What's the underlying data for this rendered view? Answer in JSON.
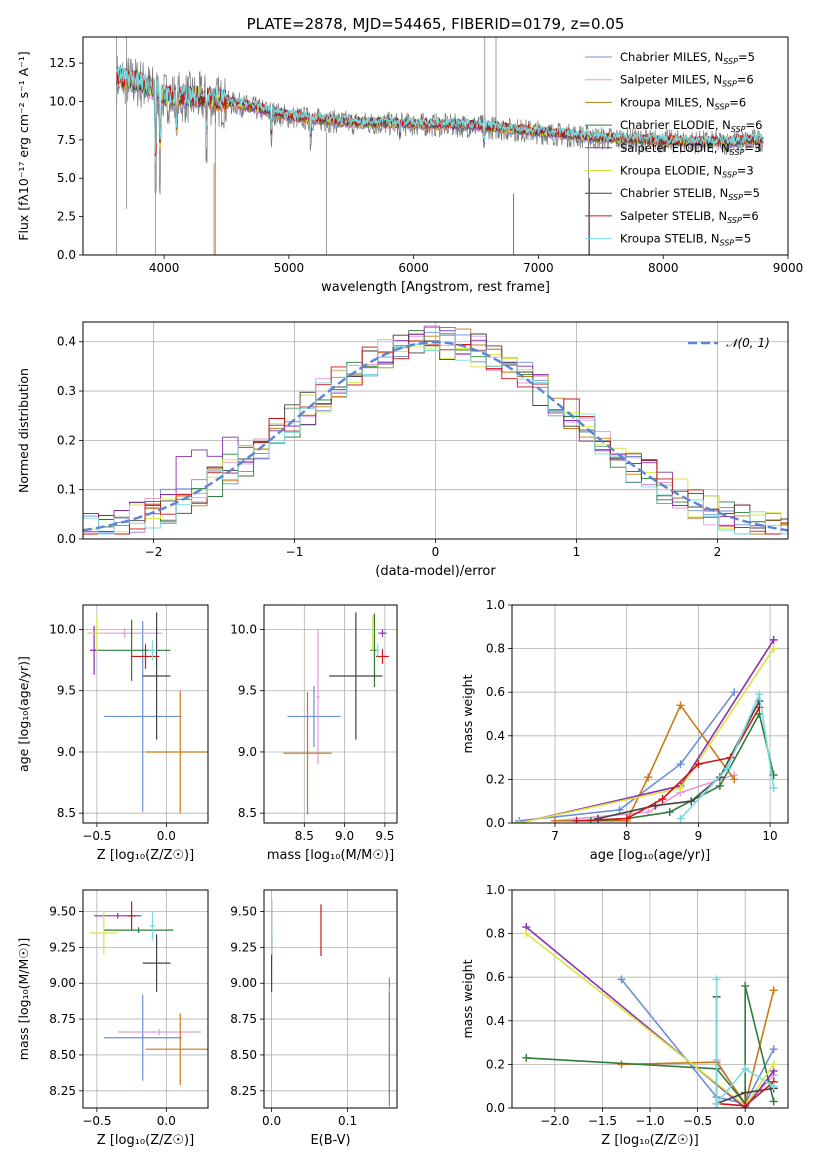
{
  "colors": {
    "chabrier_miles": "#6b8fd6",
    "salpeter_miles": "#e79ad8",
    "kroupa_miles": "#c77a16",
    "chabrier_elodie": "#2e7d3a",
    "salpeter_elodie": "#8e2fb0",
    "kroupa_elodie": "#d7e640",
    "chabrier_stelib": "#444444",
    "salpeter_stelib": "#c8161b",
    "kroupa_stelib": "#79dbe0",
    "spectrum": "#777777",
    "normal": "#5b85d8"
  },
  "chart_data": [
    {
      "id": "spectrum",
      "type": "line",
      "title": "PLATE=2878, MJD=54465, FIBERID=0179, z=0.05",
      "xlabel": "wavelength [Angstrom, rest frame]",
      "ylabel": "Flux [fλ10⁻¹⁷ erg cm⁻² s⁻¹ A⁻¹]",
      "xlim": [
        3350,
        9000
      ],
      "ylim": [
        0,
        14.2
      ],
      "xticks": [
        "4000",
        "5000",
        "6000",
        "7000",
        "8000",
        "9000"
      ],
      "yticks": [
        "0.0",
        "2.5",
        "5.0",
        "7.5",
        "10.0",
        "12.5"
      ],
      "legend": [
        "Chabrier MILES, NSSP=5",
        "Salpeter MILES, NSSP=6",
        "Kroupa MILES, NSSP=6",
        "Chabrier ELODIE, NSSP=6",
        "Salpeter ELODIE, NSSP=3",
        "Kroupa ELODIE, NSSP=3",
        "Chabrier STELIB, NSSP=5",
        "Salpeter STELIB, NSSP=6",
        "Kroupa STELIB, NSSP=5"
      ],
      "legend_position": "upper right",
      "continuum": [
        [
          3620,
          11.5
        ],
        [
          3800,
          11.2
        ],
        [
          4000,
          10.3
        ],
        [
          4300,
          10.2
        ],
        [
          4600,
          9.8
        ],
        [
          5000,
          9.0
        ],
        [
          5500,
          8.6
        ],
        [
          6000,
          8.5
        ],
        [
          6500,
          8.4
        ],
        [
          7000,
          8.0
        ],
        [
          7500,
          7.6
        ],
        [
          8000,
          7.4
        ],
        [
          8500,
          7.3
        ],
        [
          8800,
          7.5
        ]
      ]
    },
    {
      "id": "residuals",
      "type": "histogram",
      "xlabel": "(data-model)/error",
      "ylabel": "Normed distribution",
      "xlim": [
        -2.5,
        2.5
      ],
      "ylim": [
        0,
        0.44
      ],
      "xticks": [
        "−2",
        "−1",
        "0",
        "1",
        "2"
      ],
      "yticks": [
        "0.0",
        "0.1",
        "0.2",
        "0.3",
        "0.4"
      ],
      "legend": [
        "𝒩(0, 1)"
      ],
      "legend_position": "upper right",
      "grid": true
    },
    {
      "id": "age_vs_Z",
      "type": "errorbar",
      "xlabel": "Z [log₁₀(Z/Z☉)]",
      "ylabel": "age  [log₁₀(age/yr)]",
      "xlim": [
        -0.6,
        0.3
      ],
      "ylim": [
        8.42,
        10.2
      ],
      "xticks": [
        "−0.5",
        "0.0"
      ],
      "yticks": [
        "8.5",
        "9.0",
        "9.5",
        "10.0"
      ],
      "grid": true,
      "points": [
        {
          "s": "chabrier_miles",
          "x": -0.17,
          "xerr": 0.28,
          "y": 9.29,
          "yerr": 0.78
        },
        {
          "s": "salpeter_miles",
          "x": -0.3,
          "xerr": 0.27,
          "y": 9.97,
          "yerr": 0.04
        },
        {
          "s": "kroupa_miles",
          "x": 0.1,
          "xerr": 0.25,
          "y": 9.0,
          "yerr": 0.5
        },
        {
          "s": "chabrier_elodie",
          "x": -0.25,
          "xerr": 0.28,
          "y": 9.83,
          "yerr": 0.25
        },
        {
          "s": "salpeter_elodie",
          "x": -0.52,
          "xerr": 0.03,
          "y": 9.83,
          "yerr": 0.2
        },
        {
          "s": "kroupa_elodie",
          "x": -0.5,
          "xerr": 0.05,
          "y": 9.97,
          "yerr": 0.15
        },
        {
          "s": "chabrier_stelib",
          "x": -0.07,
          "xerr": 0.1,
          "y": 9.62,
          "yerr": 0.52
        },
        {
          "s": "salpeter_stelib",
          "x": -0.15,
          "xerr": 0.1,
          "y": 9.78,
          "yerr": 0.1
        },
        {
          "s": "kroupa_stelib",
          "x": -0.1,
          "xerr": 0.03,
          "y": 9.83,
          "yerr": 0.08
        }
      ]
    },
    {
      "id": "age_vs_mass",
      "type": "errorbar",
      "xlabel": "mass [log₁₀(M/M☉)]",
      "ylabel": "",
      "xlim": [
        8.0,
        9.65
      ],
      "ylim": [
        8.42,
        10.2
      ],
      "xticks": [
        "8.5",
        "9.0",
        "9.5"
      ],
      "yticks": [
        "8.5",
        "9.0",
        "9.5",
        "10.0"
      ],
      "grid": true,
      "points": [
        {
          "s": "chabrier_miles",
          "x": 8.62,
          "xerr": 0.33,
          "y": 9.29,
          "yerr": 0.25
        },
        {
          "s": "salpeter_miles",
          "x": 8.67,
          "xerr": 0.02,
          "y": 9.45,
          "yerr": 0.55
        },
        {
          "s": "kroupa_miles",
          "x": 8.54,
          "xerr": 0.3,
          "y": 8.99,
          "yerr": 0.5
        },
        {
          "s": "chabrier_elodie",
          "x": 9.37,
          "xerr": 0.05,
          "y": 9.83,
          "yerr": 0.3
        },
        {
          "s": "salpeter_elodie",
          "x": 9.47,
          "xerr": 0.05,
          "y": 9.97,
          "yerr": 0.03
        },
        {
          "s": "kroupa_elodie",
          "x": 9.35,
          "xerr": 0.02,
          "y": 9.97,
          "yerr": 0.15
        },
        {
          "s": "chabrier_stelib",
          "x": 9.14,
          "xerr": 0.33,
          "y": 9.62,
          "yerr": 0.52
        },
        {
          "s": "salpeter_stelib",
          "x": 9.47,
          "xerr": 0.08,
          "y": 9.78,
          "yerr": 0.06
        },
        {
          "s": "kroupa_stelib",
          "x": 9.41,
          "xerr": 0.02,
          "y": 9.83,
          "yerr": 0.05
        }
      ]
    },
    {
      "id": "mass_weight_vs_age",
      "type": "line",
      "xlabel": "age  [log₁₀(age/yr)]",
      "ylabel": "mass weight",
      "xlim": [
        6.4,
        10.25
      ],
      "ylim": [
        0,
        1.0
      ],
      "xticks": [
        "7",
        "8",
        "9",
        "10"
      ],
      "yticks": [
        "0.0",
        "0.2",
        "0.4",
        "0.6",
        "0.8",
        "1.0"
      ],
      "grid": true,
      "series": [
        {
          "s": "chabrier_miles",
          "x": [
            6.5,
            7.9,
            8.75,
            9.5
          ],
          "y": [
            0.01,
            0.06,
            0.27,
            0.6
          ]
        },
        {
          "s": "salpeter_miles",
          "x": [
            7.0,
            8.3,
            8.75,
            9.5
          ],
          "y": [
            0.01,
            0.05,
            0.14,
            0.22
          ]
        },
        {
          "s": "kroupa_miles",
          "x": [
            7.0,
            8.0,
            8.3,
            8.75,
            9.5
          ],
          "y": [
            0.01,
            0.01,
            0.21,
            0.54,
            0.2
          ]
        },
        {
          "s": "chabrier_elodie",
          "x": [
            7.5,
            8.0,
            8.6,
            9.3,
            9.85,
            10.05
          ],
          "y": [
            0.01,
            0.02,
            0.05,
            0.17,
            0.5,
            0.22
          ]
        },
        {
          "s": "salpeter_elodie",
          "x": [
            6.5,
            8.75,
            10.05
          ],
          "y": [
            0.0,
            0.17,
            0.84
          ]
        },
        {
          "s": "kroupa_elodie",
          "x": [
            6.5,
            8.75,
            10.05
          ],
          "y": [
            0.0,
            0.16,
            0.8
          ]
        },
        {
          "s": "chabrier_stelib",
          "x": [
            7.6,
            8.4,
            8.9,
            9.3,
            9.85
          ],
          "y": [
            0.02,
            0.08,
            0.1,
            0.21,
            0.56
          ]
        },
        {
          "s": "salpeter_stelib",
          "x": [
            7.3,
            8.0,
            8.5,
            9.0,
            9.45,
            9.85
          ],
          "y": [
            0.01,
            0.02,
            0.11,
            0.27,
            0.3,
            0.53
          ]
        },
        {
          "s": "kroupa_stelib",
          "x": [
            8.75,
            9.4,
            9.85,
            10.05
          ],
          "y": [
            0.02,
            0.25,
            0.59,
            0.16
          ]
        }
      ]
    },
    {
      "id": "mass_vs_Z",
      "type": "errorbar",
      "xlabel": "Z [log₁₀(Z/Z☉)]",
      "ylabel": "mass [log₁₀(M/M☉)]",
      "xlim": [
        -0.6,
        0.3
      ],
      "ylim": [
        8.13,
        9.65
      ],
      "xticks": [
        "−0.5",
        "0.0"
      ],
      "yticks": [
        "8.25",
        "8.50",
        "8.75",
        "9.00",
        "9.25",
        "9.50"
      ],
      "grid": true,
      "points": [
        {
          "s": "chabrier_miles",
          "x": -0.17,
          "xerr": 0.28,
          "y": 8.62,
          "yerr": 0.3
        },
        {
          "s": "salpeter_miles",
          "x": -0.05,
          "xerr": 0.3,
          "y": 8.66,
          "yerr": 0.02
        },
        {
          "s": "kroupa_miles",
          "x": 0.1,
          "xerr": 0.25,
          "y": 8.54,
          "yerr": 0.25
        },
        {
          "s": "chabrier_elodie",
          "x": -0.2,
          "xerr": 0.25,
          "y": 9.37,
          "yerr": 0.02
        },
        {
          "s": "salpeter_elodie",
          "x": -0.35,
          "xerr": 0.17,
          "y": 9.47,
          "yerr": 0.02
        },
        {
          "s": "kroupa_elodie",
          "x": -0.45,
          "xerr": 0.1,
          "y": 9.35,
          "yerr": 0.15
        },
        {
          "s": "chabrier_stelib",
          "x": -0.07,
          "xerr": 0.1,
          "y": 9.14,
          "yerr": 0.2
        },
        {
          "s": "salpeter_stelib",
          "x": -0.25,
          "xerr": 0.03,
          "y": 9.47,
          "yerr": 0.1
        },
        {
          "s": "kroupa_stelib",
          "x": -0.1,
          "xerr": 0.02,
          "y": 9.4,
          "yerr": 0.1
        }
      ]
    },
    {
      "id": "mass_vs_ebv",
      "type": "errorbar",
      "xlabel": "E(B-V)",
      "ylabel": "",
      "xlim": [
        -0.01,
        0.165
      ],
      "ylim": [
        8.13,
        9.65
      ],
      "xticks": [
        "0.0",
        "0.1"
      ],
      "yticks": [
        "8.25",
        "8.50",
        "8.75",
        "9.00",
        "9.25",
        "9.50"
      ],
      "grid": true,
      "points": [
        {
          "s": "chabrier_miles",
          "x": 0.155,
          "xerr": 0,
          "y": 8.62,
          "yerr": 0.42
        },
        {
          "s": "salpeter_miles",
          "x": 0.155,
          "xerr": 0,
          "y": 8.66,
          "yerr": 0.3
        },
        {
          "s": "kroupa_miles",
          "x": 0.155,
          "xerr": 0,
          "y": 8.54,
          "yerr": 0.4
        },
        {
          "s": "chabrier_elodie",
          "x": 0.0,
          "xerr": 0,
          "y": 9.37,
          "yerr": 0.2
        },
        {
          "s": "salpeter_elodie",
          "x": 0.0,
          "xerr": 0,
          "y": 9.47,
          "yerr": 0.1
        },
        {
          "s": "kroupa_elodie",
          "x": 0.0,
          "xerr": 0,
          "y": 9.35,
          "yerr": 0.2
        },
        {
          "s": "chabrier_stelib",
          "x": 0.0,
          "xerr": 0,
          "y": 9.14,
          "yerr": 0.2
        },
        {
          "s": "salpeter_stelib",
          "x": 0.065,
          "xerr": 0,
          "y": 9.37,
          "yerr": 0.18
        },
        {
          "s": "kroupa_stelib",
          "x": 0.0,
          "xerr": 0,
          "y": 9.4,
          "yerr": 0.2
        }
      ]
    },
    {
      "id": "mass_weight_vs_Z",
      "type": "line",
      "xlabel": "Z [log₁₀(Z/Z☉)]",
      "ylabel": "mass weight",
      "xlim": [
        -2.45,
        0.45
      ],
      "ylim": [
        0,
        1.0
      ],
      "xticks": [
        "−2.0",
        "−1.5",
        "−1.0",
        "−0.5",
        "0.0"
      ],
      "yticks": [
        "0.0",
        "0.2",
        "0.4",
        "0.6",
        "0.8",
        "1.0"
      ],
      "grid": true,
      "series": [
        {
          "s": "chabrier_miles",
          "x": [
            -1.3,
            -0.3,
            0.0,
            0.3
          ],
          "y": [
            0.59,
            0.05,
            0.02,
            0.27
          ]
        },
        {
          "s": "salpeter_miles",
          "x": [
            -0.3,
            0.0,
            0.3
          ],
          "y": [
            0.22,
            0.01,
            0.15
          ]
        },
        {
          "s": "kroupa_miles",
          "x": [
            -1.3,
            -0.3,
            0.0,
            0.3
          ],
          "y": [
            0.2,
            0.21,
            0.02,
            0.54
          ]
        },
        {
          "s": "chabrier_elodie",
          "x": [
            -2.3,
            -0.3,
            0.0,
            0.0,
            0.3
          ],
          "y": [
            0.23,
            0.18,
            0.02,
            0.56,
            0.03
          ]
        },
        {
          "s": "salpeter_elodie",
          "x": [
            -2.3,
            0.0,
            0.3
          ],
          "y": [
            0.83,
            0.0,
            0.17
          ]
        },
        {
          "s": "kroupa_elodie",
          "x": [
            -2.3,
            0.0,
            0.3
          ],
          "y": [
            0.8,
            0.01,
            0.2
          ]
        },
        {
          "s": "chabrier_stelib",
          "x": [
            -0.3,
            -0.3,
            0.0,
            0.3
          ],
          "y": [
            0.51,
            0.02,
            0.07,
            0.09
          ]
        },
        {
          "s": "salpeter_stelib",
          "x": [
            -0.3,
            0.0,
            0.3
          ],
          "y": [
            0.02,
            0.01,
            0.12
          ]
        },
        {
          "s": "kroupa_stelib",
          "x": [
            -0.3,
            -0.3,
            0.0,
            0.3
          ],
          "y": [
            0.59,
            0.02,
            0.18,
            0.1
          ]
        }
      ]
    }
  ]
}
